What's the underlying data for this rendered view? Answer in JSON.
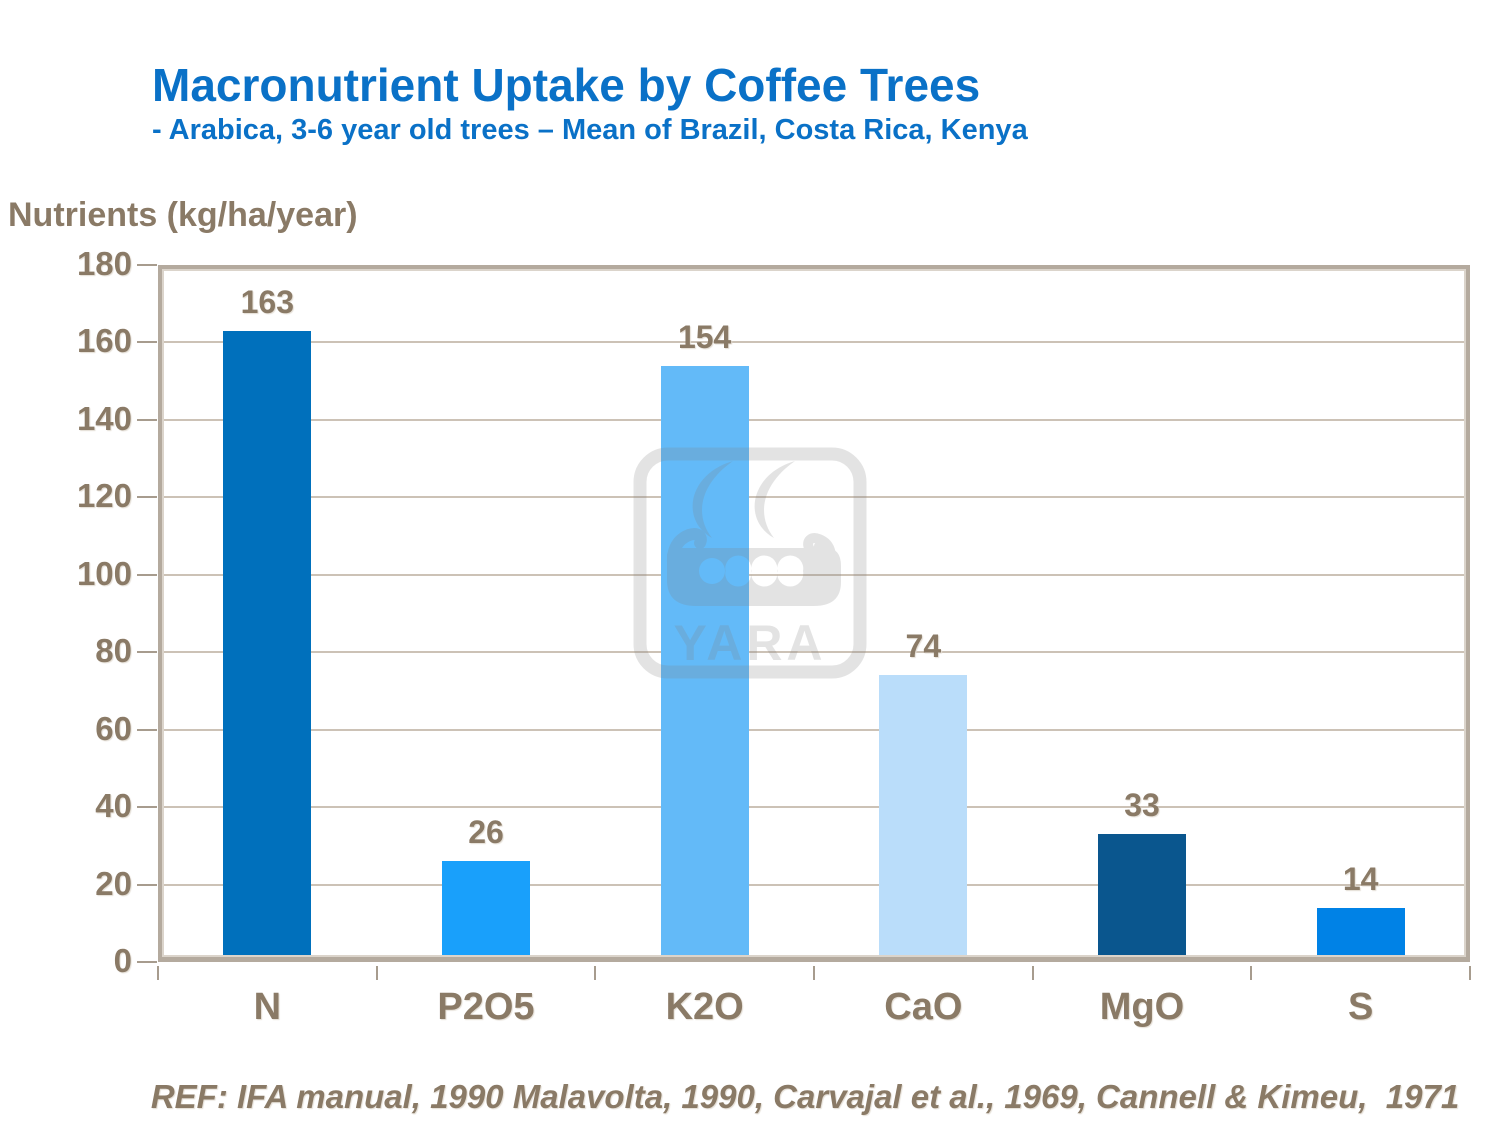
{
  "header": {
    "title": "Macronutrient Uptake by Coffee Trees",
    "subtitle": "- Arabica, 3-6 year old trees – Mean of Brazil, Costa Rica, Kenya"
  },
  "axis": {
    "y_title": "Nutrients (kg/ha/year)"
  },
  "watermark": {
    "text": "YARA",
    "color": "#808080",
    "opacity": 0.21
  },
  "footer": {
    "reference": "REF: IFA manual, 1990 Malavolta, 1990, Carvajal et al., 1969, Cannell & Kimeu,  1971"
  },
  "colors": {
    "title_blue": "#0A71C7",
    "text_brown": "#8A7A66",
    "grid": "#CCC2B6",
    "frame": "#B4AA9E"
  },
  "chart_data": {
    "type": "bar",
    "title": "Macronutrient Uptake by Coffee Trees",
    "subtitle": "- Arabica, 3-6 year old trees – Mean of Brazil, Costa Rica, Kenya",
    "ylabel": "Nutrients (kg/ha/year)",
    "xlabel": "",
    "categories": [
      "N",
      "P2O5",
      "K2O",
      "CaO",
      "MgO",
      "S"
    ],
    "values": [
      163,
      26,
      154,
      74,
      33,
      14
    ],
    "bar_colors": [
      "#0070BC",
      "#19A0FB",
      "#63BAF8",
      "#BADDFA",
      "#0A568E",
      "#0082E6"
    ],
    "ylim": [
      0,
      180
    ],
    "ytick_step": 20,
    "grid": true,
    "legend": false,
    "annotation": "REF: IFA manual, 1990 Malavolta, 1990, Carvajal et al., 1969, Cannell & Kimeu,  1971"
  }
}
